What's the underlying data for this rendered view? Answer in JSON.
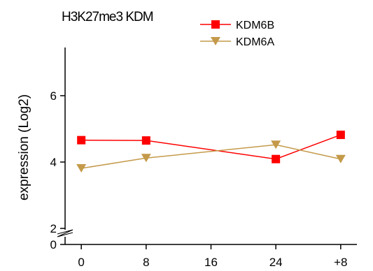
{
  "chart_data": {
    "type": "line",
    "title": "H3K27me3 KDM",
    "ylabel": "expression (Log2)",
    "xlabel": "",
    "categories": [
      "0",
      "8",
      "16",
      "24",
      "+8"
    ],
    "x_positions": [
      0,
      8,
      16,
      24,
      32
    ],
    "xlim": [
      -2,
      34
    ],
    "ylim": [
      1.5,
      7.5
    ],
    "y_axis_break": {
      "lower_tick": 0,
      "break_between": [
        0,
        2
      ]
    },
    "yticks": [
      0,
      2,
      4,
      6
    ],
    "ytick_labels": [
      "0",
      "2",
      "4",
      "6"
    ],
    "grid": false,
    "legend_position": "top",
    "series": [
      {
        "name": "KDM6B",
        "marker": "square",
        "color": "#ff0000",
        "x": [
          0,
          8,
          24,
          32
        ],
        "values": [
          4.66,
          4.65,
          4.09,
          4.82
        ]
      },
      {
        "name": "KDM6A",
        "marker": "triangle-down",
        "color": "#c49a4a",
        "x": [
          0,
          8,
          24,
          32
        ],
        "values": [
          3.81,
          4.12,
          4.52,
          4.09
        ]
      }
    ]
  }
}
